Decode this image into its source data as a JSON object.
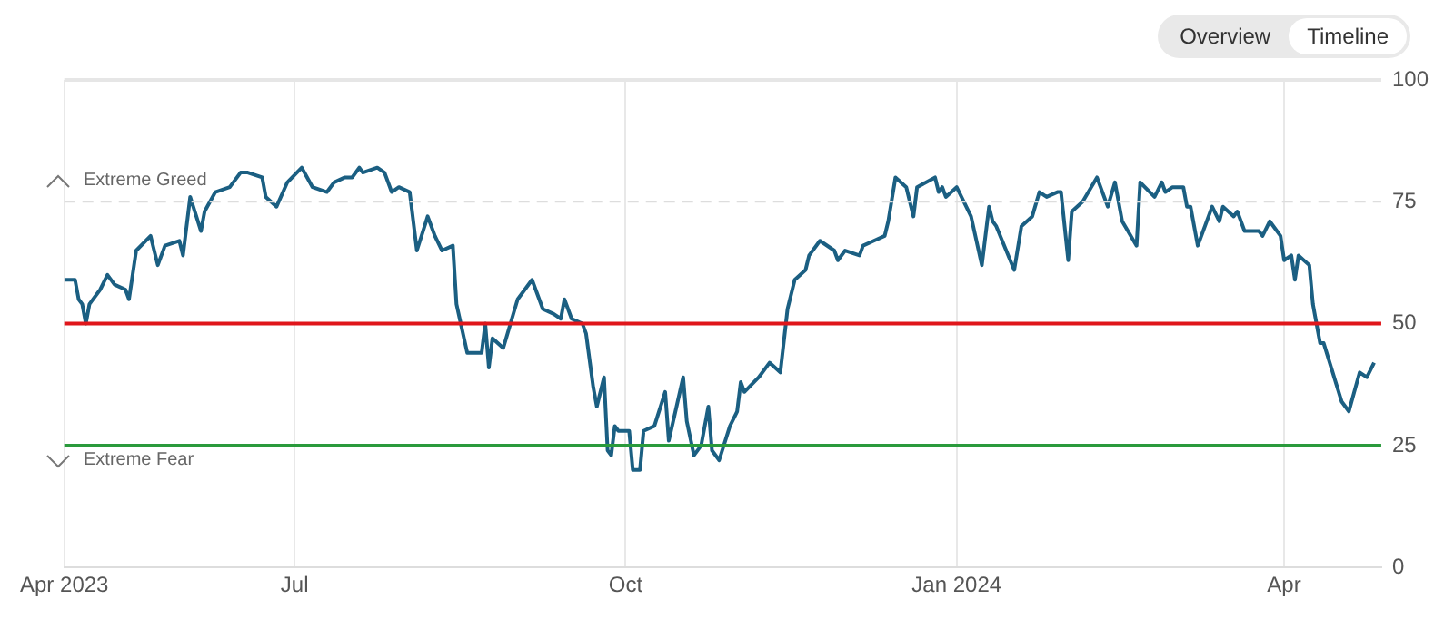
{
  "chart_data": {
    "type": "line",
    "x": [
      "2023-04-28",
      "2023-05-01",
      "2023-05-02",
      "2023-05-03",
      "2023-05-04",
      "2023-05-05",
      "2023-05-08",
      "2023-05-10",
      "2023-05-12",
      "2023-05-15",
      "2023-05-16",
      "2023-05-18",
      "2023-05-22",
      "2023-05-24",
      "2023-05-26",
      "2023-05-30",
      "2023-05-31",
      "2023-06-02",
      "2023-06-05",
      "2023-06-06",
      "2023-06-09",
      "2023-06-13",
      "2023-06-16",
      "2023-06-18",
      "2023-06-22",
      "2023-06-23",
      "2023-06-26",
      "2023-06-29",
      "2023-07-03",
      "2023-07-06",
      "2023-07-10",
      "2023-07-12",
      "2023-07-15",
      "2023-07-17",
      "2023-07-19",
      "2023-07-20",
      "2023-07-24",
      "2023-07-26",
      "2023-07-28",
      "2023-07-30",
      "2023-08-02",
      "2023-08-04",
      "2023-08-07",
      "2023-08-09",
      "2023-08-11",
      "2023-08-14",
      "2023-08-15",
      "2023-08-18",
      "2023-08-22",
      "2023-08-23",
      "2023-08-24",
      "2023-08-25",
      "2023-08-28",
      "2023-09-01",
      "2023-09-05",
      "2023-09-08",
      "2023-09-11",
      "2023-09-13",
      "2023-09-14",
      "2023-09-16",
      "2023-09-19",
      "2023-09-20",
      "2023-09-22",
      "2023-09-23",
      "2023-09-25",
      "2023-09-26",
      "2023-09-27",
      "2023-09-28",
      "2023-09-29",
      "2023-10-02",
      "2023-10-03",
      "2023-10-05",
      "2023-10-06",
      "2023-10-09",
      "2023-10-12",
      "2023-10-13",
      "2023-10-17",
      "2023-10-18",
      "2023-10-20",
      "2023-10-22",
      "2023-10-24",
      "2023-10-25",
      "2023-10-27",
      "2023-10-30",
      "2023-11-01",
      "2023-11-02",
      "2023-11-03",
      "2023-11-07",
      "2023-11-10",
      "2023-11-13",
      "2023-11-15",
      "2023-11-17",
      "2023-11-20",
      "2023-11-21",
      "2023-11-24",
      "2023-11-28",
      "2023-11-29",
      "2023-12-01",
      "2023-12-05",
      "2023-12-06",
      "2023-12-09",
      "2023-12-12",
      "2023-12-13",
      "2023-12-15",
      "2023-12-18",
      "2023-12-20",
      "2023-12-21",
      "2023-12-26",
      "2023-12-27",
      "2023-12-28",
      "2023-12-29",
      "2024-01-01",
      "2024-01-05",
      "2024-01-08",
      "2024-01-10",
      "2024-01-11",
      "2024-01-12",
      "2024-01-17",
      "2024-01-19",
      "2024-01-22",
      "2024-01-24",
      "2024-01-26",
      "2024-01-29",
      "2024-01-30",
      "2024-02-01",
      "2024-02-02",
      "2024-02-05",
      "2024-02-09",
      "2024-02-12",
      "2024-02-14",
      "2024-02-16",
      "2024-02-20",
      "2024-02-21",
      "2024-02-25",
      "2024-02-27",
      "2024-02-28",
      "2024-03-01",
      "2024-03-04",
      "2024-03-05",
      "2024-03-06",
      "2024-03-08",
      "2024-03-12",
      "2024-03-14",
      "2024-03-15",
      "2024-03-18",
      "2024-03-19",
      "2024-03-21",
      "2024-03-25",
      "2024-03-26",
      "2024-03-28",
      "2024-03-31",
      "2024-04-01",
      "2024-04-03",
      "2024-04-04",
      "2024-04-05",
      "2024-04-08",
      "2024-04-09",
      "2024-04-11",
      "2024-04-12",
      "2024-04-17",
      "2024-04-19",
      "2024-04-22",
      "2024-04-24",
      "2024-04-26"
    ],
    "series": [
      {
        "color": "#1b5f82",
        "values": [
          59,
          59,
          55,
          54,
          50,
          54,
          57,
          60,
          58,
          57,
          55,
          65,
          68,
          62,
          66,
          67,
          64,
          76,
          69,
          73,
          77,
          78,
          81,
          81,
          80,
          76,
          74,
          79,
          82,
          78,
          77,
          79,
          80,
          80,
          82,
          81,
          82,
          81,
          77,
          78,
          77,
          65,
          72,
          68,
          65,
          66,
          54,
          44,
          44,
          50,
          41,
          47,
          45,
          55,
          59,
          53,
          52,
          51,
          55,
          51,
          50,
          48,
          37,
          33,
          39,
          24,
          23,
          29,
          28,
          28,
          20,
          20,
          28,
          29,
          36,
          26,
          39,
          30,
          23,
          25,
          33,
          24,
          22,
          29,
          32,
          38,
          36,
          39,
          42,
          40,
          53,
          59,
          61,
          64,
          67,
          65,
          63,
          65,
          64,
          66,
          67,
          68,
          71,
          80,
          78,
          72,
          78,
          80,
          77,
          78,
          76,
          78,
          72,
          62,
          74,
          71,
          70,
          61,
          70,
          72,
          77,
          76,
          77,
          77,
          63,
          73,
          75,
          80,
          74,
          79,
          71,
          66,
          79,
          76,
          79,
          77,
          78,
          78,
          74,
          74,
          66,
          74,
          71,
          74,
          72,
          73,
          69,
          69,
          68,
          71,
          68,
          63,
          64,
          59,
          64,
          62,
          54,
          46,
          46,
          34,
          32,
          40,
          39,
          42
        ]
      }
    ],
    "xlim": [
      "2023-04-28",
      "2024-04-28"
    ],
    "xticks": [
      {
        "value": "2023-04-28",
        "label": "Apr 2023"
      },
      {
        "value": "2023-07-01",
        "label": "Jul"
      },
      {
        "value": "2023-10-01",
        "label": "Oct"
      },
      {
        "value": "2024-01-01",
        "label": "Jan 2024"
      },
      {
        "value": "2024-04-01",
        "label": "Apr"
      }
    ],
    "ylim": [
      0,
      100
    ],
    "yticks": [
      0,
      25,
      50,
      75,
      100
    ],
    "grid": "x",
    "ref_lines": [
      {
        "axis": "y",
        "value": 100,
        "color": "#e6e6e6"
      },
      {
        "axis": "y",
        "value": 75,
        "color": "#dddddd",
        "line_style": "dashed"
      },
      {
        "axis": "y",
        "value": 50,
        "color": "#e0161b"
      },
      {
        "axis": "y",
        "value": 25,
        "color": "#2a9a3c"
      }
    ],
    "annotations": [
      "Extreme Greed",
      "Extreme Fear",
      "Overview",
      "Timeline"
    ]
  }
}
